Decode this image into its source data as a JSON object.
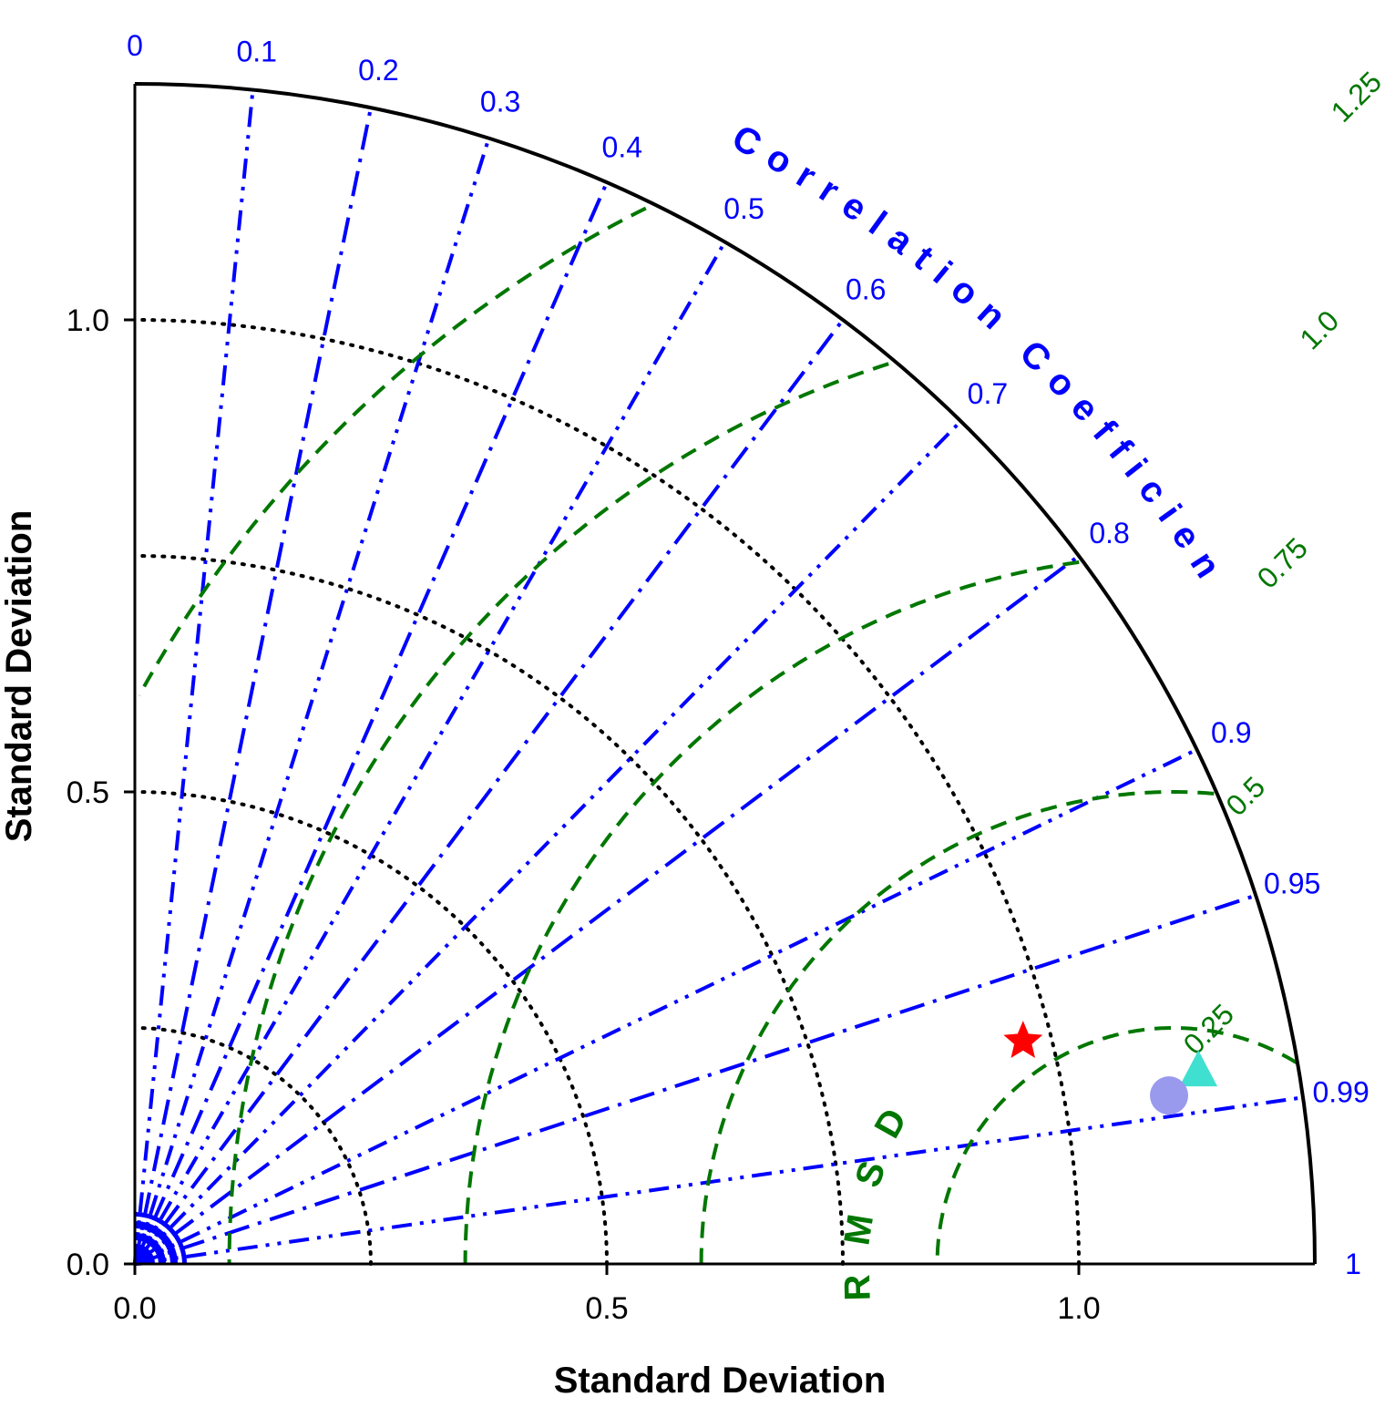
{
  "chart_data": {
    "type": "taylor",
    "xlabel": "Standard Deviation",
    "ylabel": "Standard Deviation",
    "correlation_label": "Correlation Coefficient",
    "rmsd_label": "RMSD",
    "std_max": 1.25,
    "reference_std": 1.1,
    "std_ticks": [
      "0.0",
      "0.5",
      "1.0"
    ],
    "std_tick_values": [
      0.0,
      0.5,
      1.0
    ],
    "std_grid": [
      0.25,
      0.5,
      0.75,
      1.0
    ],
    "correlation_ticks": [
      {
        "value": 0.0,
        "label": "0"
      },
      {
        "value": 0.1,
        "label": "0.1"
      },
      {
        "value": 0.2,
        "label": "0.2"
      },
      {
        "value": 0.3,
        "label": "0.3"
      },
      {
        "value": 0.4,
        "label": "0.4"
      },
      {
        "value": 0.5,
        "label": "0.5"
      },
      {
        "value": 0.6,
        "label": "0.6"
      },
      {
        "value": 0.7,
        "label": "0.7"
      },
      {
        "value": 0.8,
        "label": "0.8"
      },
      {
        "value": 0.9,
        "label": "0.9"
      },
      {
        "value": 0.95,
        "label": "0.95"
      },
      {
        "value": 0.99,
        "label": "0.99"
      },
      {
        "value": 1.0,
        "label": "1"
      }
    ],
    "rmsd_contours": [
      {
        "value": 0.25,
        "label": "0.25"
      },
      {
        "value": 0.5,
        "label": "0.5"
      },
      {
        "value": 0.75,
        "label": "0.75"
      },
      {
        "value": 1.0,
        "label": "1.0"
      },
      {
        "value": 1.25,
        "label": "1.25"
      }
    ],
    "points": [
      {
        "marker": "star",
        "color": "#ff0000",
        "std": 0.97,
        "corr": 0.97
      },
      {
        "marker": "triangle",
        "color": "#40e0d0",
        "std": 1.145,
        "corr": 0.984
      },
      {
        "marker": "circle",
        "color": "#9999ee",
        "std": 1.11,
        "corr": 0.987
      }
    ],
    "colors": {
      "correlation": "#0000ff",
      "rmsd": "#007700",
      "std_grid": "#000000",
      "frame": "#000000"
    }
  }
}
